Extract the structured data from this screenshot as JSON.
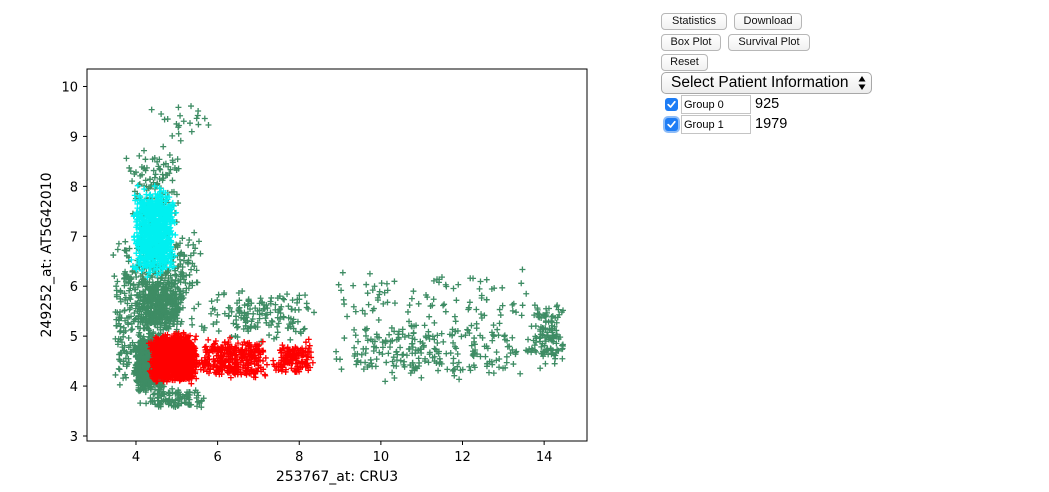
{
  "colors": {
    "group_0": "#3e8c64",
    "group_1": "#ff0000",
    "selection": "#00f0f0"
  },
  "chart_data": {
    "type": "scatter",
    "title": "",
    "xlabel": "253767_at:  CRU3",
    "ylabel": "249252_at:  AT5G42010",
    "xlim": [
      2.8,
      15.05
    ],
    "ylim": [
      2.9,
      10.35
    ],
    "xticks": [
      4,
      6,
      8,
      10,
      12,
      14
    ],
    "yticks": [
      3,
      4,
      5,
      6,
      7,
      8,
      9,
      10
    ],
    "marker": "plus",
    "grid": false,
    "legend": "none",
    "clusters": [
      {
        "group": "group_0",
        "shape": "box",
        "count": 900,
        "x": [
          3.9,
          4.8
        ],
        "y": [
          3.8,
          5.1
        ]
      },
      {
        "group": "group_0",
        "shape": "box",
        "count": 500,
        "x": [
          3.8,
          5.3
        ],
        "y": [
          5.0,
          6.2
        ]
      },
      {
        "group": "group_0",
        "shape": "box",
        "count": 180,
        "x": [
          3.6,
          5.8
        ],
        "y": [
          5.8,
          7.2
        ]
      },
      {
        "group": "group_0",
        "shape": "box",
        "count": 120,
        "x": [
          3.7,
          5.2
        ],
        "y": [
          7.0,
          8.9
        ]
      },
      {
        "group": "group_0",
        "shape": "box",
        "count": 120,
        "x": [
          3.4,
          4.0
        ],
        "y": [
          3.8,
          7.2
        ]
      },
      {
        "group": "group_0",
        "shape": "box",
        "count": 90,
        "x": [
          4.2,
          5.8
        ],
        "y": [
          3.5,
          4.0
        ]
      },
      {
        "group": "group_0",
        "shape": "box",
        "count": 160,
        "x": [
          5.0,
          8.8
        ],
        "y": [
          4.8,
          6.0
        ]
      },
      {
        "group": "group_0",
        "shape": "box",
        "count": 260,
        "x": [
          8.5,
          14.3
        ],
        "y": [
          4.0,
          5.4
        ]
      },
      {
        "group": "group_0",
        "shape": "box",
        "count": 90,
        "x": [
          8.0,
          14.5
        ],
        "y": [
          5.2,
          6.4
        ]
      },
      {
        "group": "group_0",
        "shape": "box",
        "count": 120,
        "x": [
          13.6,
          14.6
        ],
        "y": [
          4.3,
          5.8
        ]
      },
      {
        "group": "group_0",
        "shape": "box",
        "count": 22,
        "x": [
          4.2,
          6.2
        ],
        "y": [
          8.8,
          9.9
        ]
      },
      {
        "group": "group_0",
        "shape": "box",
        "count": 14,
        "x": [
          3.9,
          5.5
        ],
        "y": [
          3.45,
          3.9
        ]
      },
      {
        "group": "selection",
        "shape": "box",
        "count": 800,
        "x": [
          3.85,
          5.05
        ],
        "y": [
          6.1,
          8.05
        ]
      },
      {
        "group": "group_1",
        "shape": "box",
        "count": 1500,
        "x": [
          4.25,
          5.6
        ],
        "y": [
          4.0,
          5.1
        ]
      },
      {
        "group": "group_1",
        "shape": "box",
        "count": 330,
        "x": [
          5.4,
          7.4
        ],
        "y": [
          4.1,
          5.0
        ]
      },
      {
        "group": "group_1",
        "shape": "box",
        "count": 140,
        "x": [
          7.2,
          8.55
        ],
        "y": [
          4.15,
          4.95
        ]
      }
    ]
  },
  "toolbar": {
    "statistics_label": "Statistics",
    "download_label": "Download",
    "boxplot_label": "Box Plot",
    "survival_label": "Survival Plot",
    "reset_label": "Reset"
  },
  "patient_select": {
    "selected": "Select Patient Information"
  },
  "groups": [
    {
      "name": "Group 0",
      "count": "925",
      "checked": true
    },
    {
      "name": "Group 1",
      "count": "1979",
      "checked": true
    }
  ]
}
